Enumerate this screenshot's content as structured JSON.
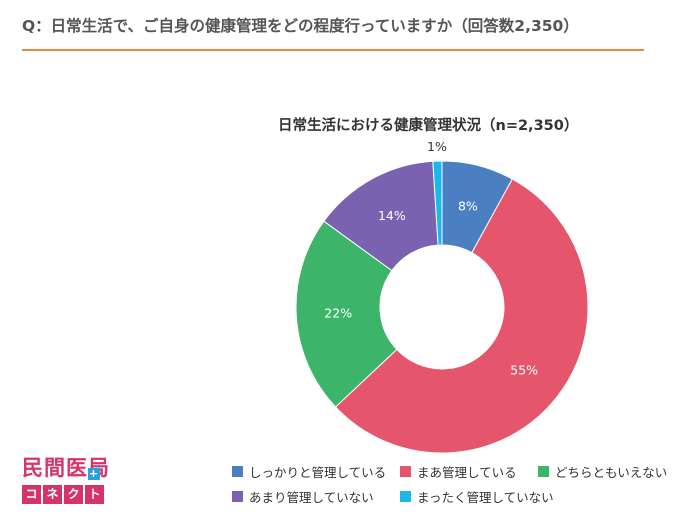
{
  "header": {
    "question": "Q：日常生活で、ご自身の健康管理をどの程度行っていますか（回答数2,350）"
  },
  "chart_data": {
    "type": "pie",
    "donut": true,
    "title": "日常生活における健康管理状況（n=2,350）",
    "categories": [
      "しっかりと管理している",
      "まあ管理している",
      "どちらともいえない",
      "あまり管理していない",
      "まったく管理していない"
    ],
    "values": [
      8,
      55,
      22,
      14,
      1
    ],
    "labels": [
      "8%",
      "55%",
      "22%",
      "14%",
      "1%"
    ],
    "colors": [
      "#4a7fc1",
      "#e5566d",
      "#3cb56a",
      "#7b62b0",
      "#1bb8ea"
    ],
    "legend_position": "bottom"
  },
  "logo": {
    "top_text": "民間医局",
    "plus": "+",
    "bottom_chars": [
      "コ",
      "ネ",
      "ク",
      "ト"
    ]
  }
}
